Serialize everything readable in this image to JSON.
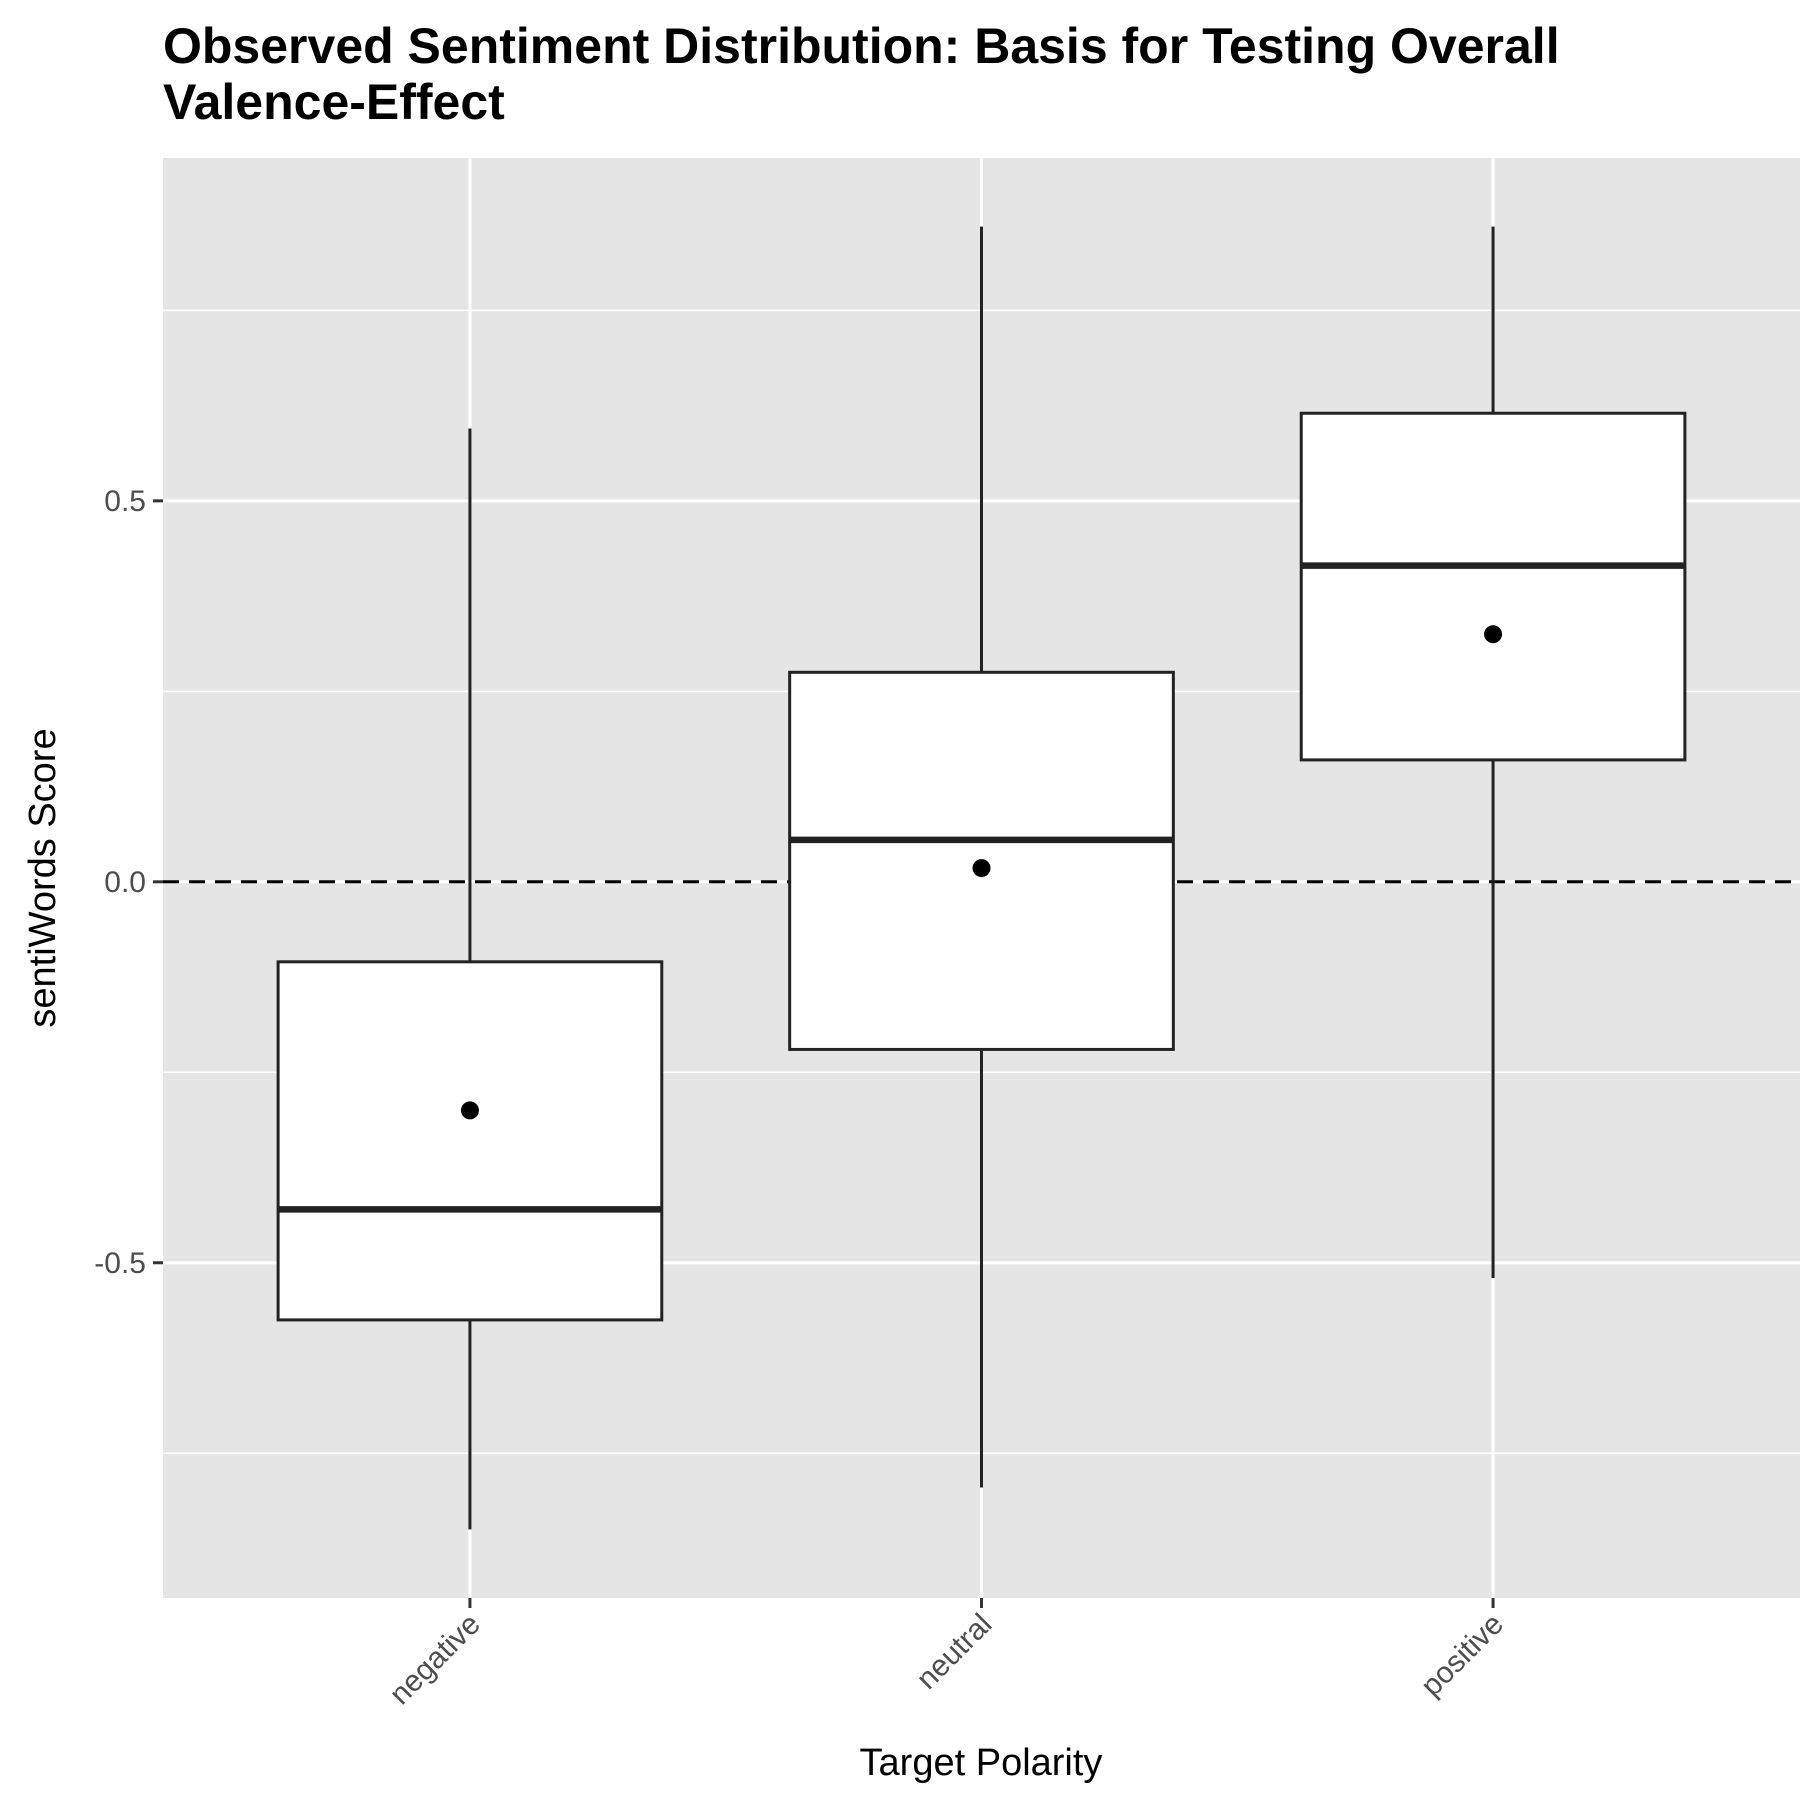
{
  "chart_data": {
    "type": "boxplot",
    "title_lines": [
      "Observed Sentiment Distribution: Basis for Testing Overall",
      "Valence-Effect"
    ],
    "xlabel": "Target Polarity",
    "ylabel": "sentiWords Score",
    "ylim": [
      -0.94,
      0.95
    ],
    "yticks": [
      -0.5,
      0.0,
      0.5
    ],
    "ytick_labels": [
      "-0.5",
      "0.0",
      "0.5"
    ],
    "yminor": [
      -0.75,
      -0.25,
      0.25,
      0.75
    ],
    "reference_line": {
      "y": 0.0,
      "style": "dashed"
    },
    "categories": [
      "negative",
      "neutral",
      "positive"
    ],
    "boxes": [
      {
        "category": "negative",
        "whisker_low": -0.85,
        "q1": -0.575,
        "median": -0.43,
        "q3": -0.105,
        "whisker_high": 0.595,
        "mean": -0.3
      },
      {
        "category": "neutral",
        "whisker_low": -0.795,
        "q1": -0.22,
        "median": 0.055,
        "q3": 0.275,
        "whisker_high": 0.86,
        "mean": 0.018
      },
      {
        "category": "positive",
        "whisker_low": -0.52,
        "q1": 0.16,
        "median": 0.415,
        "q3": 0.615,
        "whisker_high": 0.86,
        "mean": 0.325
      }
    ],
    "colors": {
      "panel": "#e5e5e5",
      "grid": "#ffffff",
      "box_fill": "#ffffff",
      "box_stroke": "#222222",
      "mean_point": "#000000"
    }
  }
}
